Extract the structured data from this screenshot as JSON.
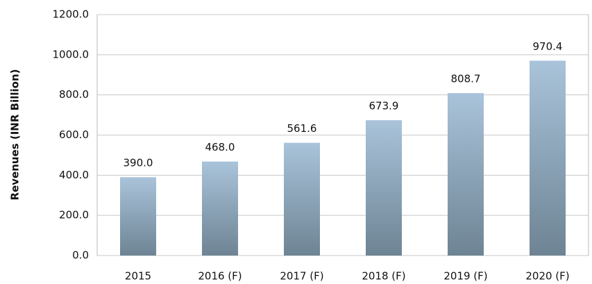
{
  "chart_data": {
    "type": "bar",
    "y_label": "Revenues (INR Billion)",
    "categories": [
      "2015",
      "2016 (F)",
      "2017 (F)",
      "2018 (F)",
      "2019 (F)",
      "2020 (F)"
    ],
    "values": [
      390.0,
      468.0,
      561.6,
      673.9,
      808.7,
      970.4
    ],
    "value_labels": [
      "390.0",
      "468.0",
      "561.6",
      "673.9",
      "808.7",
      "970.4"
    ],
    "color": [
      "#a9c3da",
      "#6e8494"
    ],
    "ylim": [
      0,
      1200
    ],
    "yticks": [
      {
        "value": 0,
        "label": "0.0"
      },
      {
        "value": 200,
        "label": "200.0"
      },
      {
        "value": 400,
        "label": "400.0"
      },
      {
        "value": 600,
        "label": "600.0"
      },
      {
        "value": 800,
        "label": "800.0"
      },
      {
        "value": 1000,
        "label": "1000.0"
      },
      {
        "value": 1200,
        "label": "1200.0"
      }
    ],
    "grid": true
  }
}
